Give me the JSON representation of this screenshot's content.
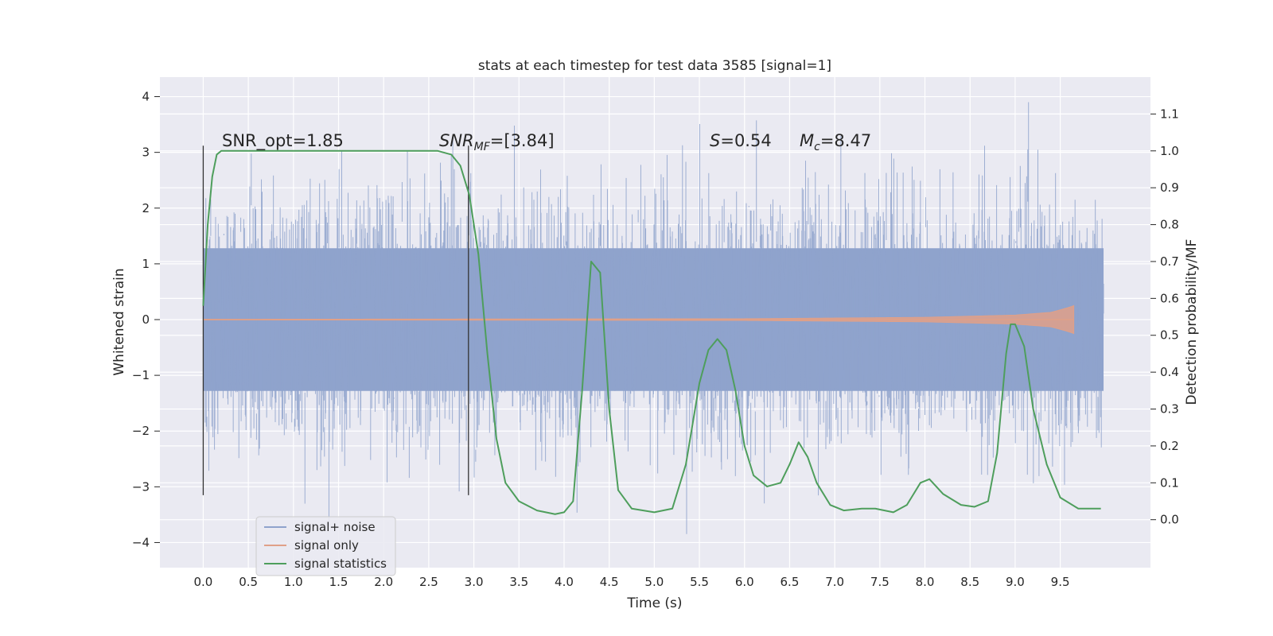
{
  "chart_data": {
    "type": "line",
    "title": "stats at each timestep for test data 3585 [signal=1]",
    "xlabel": "Time (s)",
    "ylabel": "Whitened strain",
    "y2label": "Detection probability/MF",
    "xlim": [
      -0.48,
      10.5
    ],
    "ylim": [
      -4.45,
      4.35
    ],
    "y2lim": [
      -0.13,
      1.2
    ],
    "xticks": [
      "0.0",
      "0.5",
      "1.0",
      "1.5",
      "2.0",
      "2.5",
      "3.0",
      "3.5",
      "4.0",
      "4.5",
      "5.0",
      "5.5",
      "6.0",
      "6.5",
      "7.0",
      "7.5",
      "8.0",
      "8.5",
      "9.0",
      "9.5"
    ],
    "yticks": [
      "4",
      "3",
      "2",
      "1",
      "0",
      "−1",
      "−2",
      "−3",
      "−4"
    ],
    "y2ticks": [
      "1.1",
      "1.0",
      "0.9",
      "0.8",
      "0.7",
      "0.6",
      "0.5",
      "0.4",
      "0.3",
      "0.2",
      "0.1",
      "0.0"
    ],
    "grid": true,
    "legend_position": "lower-left",
    "annotations": {
      "snr_opt": "SNR_opt=1.85",
      "snr_mf_main": "SNR",
      "snr_mf_sub": "MF",
      "snr_mf_rest": "=[3.84]",
      "s_main": "S",
      "s_rest": "=0.54",
      "mc_main": "M",
      "mc_sub": "c",
      "mc_rest": "=8.47"
    },
    "markers_x": [
      0.0,
      2.94
    ],
    "series": [
      {
        "name": "signal+ noise",
        "color": "#8fa3cc",
        "t_range": [
          0.0,
          9.98
        ],
        "envelope": "noise band, mostly within [-2, 2], spikes to about ±3.8"
      },
      {
        "name": "signal only",
        "color": "#e0a088",
        "t_range": [
          0.0,
          9.65
        ],
        "amplitude_growth": [
          [
            0.0,
            0.005
          ],
          [
            6.0,
            0.015
          ],
          [
            8.0,
            0.04
          ],
          [
            9.0,
            0.08
          ],
          [
            9.4,
            0.13
          ],
          [
            9.6,
            0.22
          ],
          [
            9.65,
            0.25
          ]
        ]
      },
      {
        "name": "signal statistics",
        "color": "#4e9e5c",
        "points": [
          [
            0.0,
            0.58
          ],
          [
            0.05,
            0.8
          ],
          [
            0.1,
            0.93
          ],
          [
            0.15,
            0.99
          ],
          [
            0.2,
            1.0
          ],
          [
            1.0,
            1.0
          ],
          [
            2.0,
            1.0
          ],
          [
            2.6,
            1.0
          ],
          [
            2.75,
            0.99
          ],
          [
            2.85,
            0.96
          ],
          [
            2.95,
            0.88
          ],
          [
            3.05,
            0.72
          ],
          [
            3.15,
            0.45
          ],
          [
            3.25,
            0.22
          ],
          [
            3.35,
            0.1
          ],
          [
            3.5,
            0.05
          ],
          [
            3.7,
            0.025
          ],
          [
            3.9,
            0.015
          ],
          [
            4.0,
            0.02
          ],
          [
            4.1,
            0.05
          ],
          [
            4.2,
            0.35
          ],
          [
            4.3,
            0.7
          ],
          [
            4.4,
            0.67
          ],
          [
            4.5,
            0.3
          ],
          [
            4.6,
            0.08
          ],
          [
            4.75,
            0.03
          ],
          [
            5.0,
            0.02
          ],
          [
            5.2,
            0.03
          ],
          [
            5.35,
            0.15
          ],
          [
            5.5,
            0.37
          ],
          [
            5.6,
            0.46
          ],
          [
            5.7,
            0.49
          ],
          [
            5.8,
            0.46
          ],
          [
            5.9,
            0.35
          ],
          [
            6.0,
            0.2
          ],
          [
            6.1,
            0.12
          ],
          [
            6.25,
            0.09
          ],
          [
            6.4,
            0.1
          ],
          [
            6.5,
            0.15
          ],
          [
            6.6,
            0.21
          ],
          [
            6.7,
            0.17
          ],
          [
            6.8,
            0.1
          ],
          [
            6.95,
            0.04
          ],
          [
            7.1,
            0.025
          ],
          [
            7.3,
            0.03
          ],
          [
            7.45,
            0.03
          ],
          [
            7.65,
            0.02
          ],
          [
            7.8,
            0.04
          ],
          [
            7.95,
            0.1
          ],
          [
            8.05,
            0.11
          ],
          [
            8.2,
            0.07
          ],
          [
            8.4,
            0.04
          ],
          [
            8.55,
            0.035
          ],
          [
            8.7,
            0.05
          ],
          [
            8.8,
            0.18
          ],
          [
            8.9,
            0.45
          ],
          [
            8.95,
            0.53
          ],
          [
            9.0,
            0.53
          ],
          [
            9.1,
            0.47
          ],
          [
            9.2,
            0.3
          ],
          [
            9.35,
            0.15
          ],
          [
            9.5,
            0.06
          ],
          [
            9.7,
            0.03
          ],
          [
            9.95,
            0.03
          ]
        ]
      }
    ]
  }
}
